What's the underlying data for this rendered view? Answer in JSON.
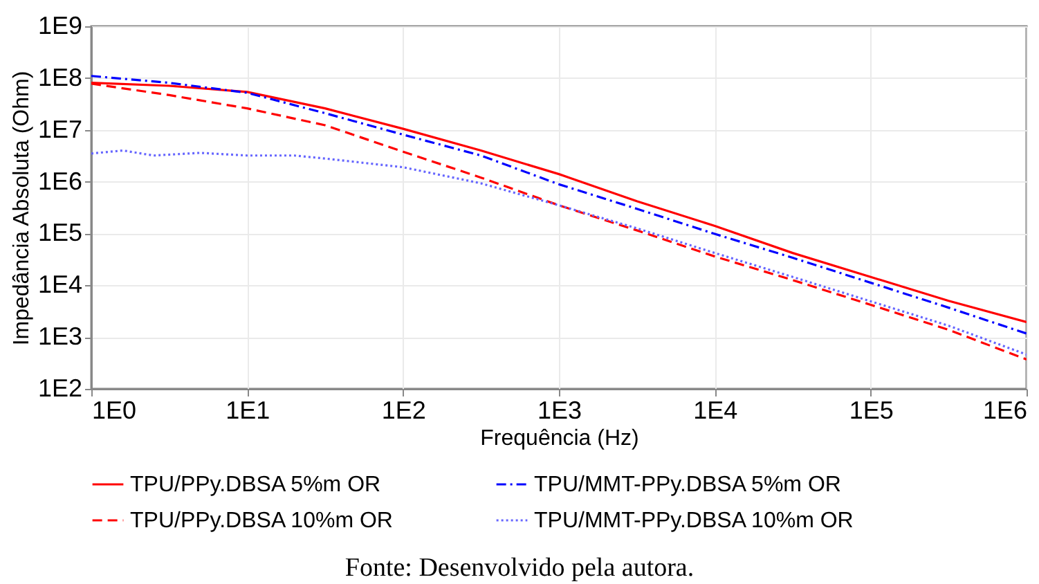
{
  "chart_data": {
    "type": "line",
    "xlabel": "Frequência (Hz)",
    "ylabel": "Impedância Absoluta (Ohm)",
    "log": "xy",
    "grid": true,
    "legend": "bottom",
    "x": [
      1,
      3.16,
      10,
      31.6,
      100,
      316,
      1000,
      3160,
      10000,
      31600,
      100000,
      316000,
      1000000
    ],
    "xlim": [
      1,
      1000000
    ],
    "xticks": [
      {
        "value": 1,
        "label": "1E0"
      },
      {
        "value": 10,
        "label": "1E1"
      },
      {
        "value": 100,
        "label": "1E2"
      },
      {
        "value": 1000,
        "label": "1E3"
      },
      {
        "value": 10000,
        "label": "1E4"
      },
      {
        "value": 100000,
        "label": "1E5"
      },
      {
        "value": 1000000,
        "label": "1E6"
      }
    ],
    "ylim": [
      100,
      1000000000
    ],
    "yticks": [
      {
        "value": 100,
        "label": "1E2"
      },
      {
        "value": 1000,
        "label": "1E3"
      },
      {
        "value": 10000,
        "label": "1E4"
      },
      {
        "value": 100000,
        "label": "1E5"
      },
      {
        "value": 1000000,
        "label": "1E6"
      },
      {
        "value": 10000000,
        "label": "1E7"
      },
      {
        "value": 100000000,
        "label": "1E8"
      },
      {
        "value": 1000000000,
        "label": "1E9"
      }
    ],
    "series": [
      {
        "name": "TPU/PPy.DBSA 5%m OR",
        "color": "#ff0000",
        "line_style": "solid",
        "values": [
          81000000.0,
          71000000.0,
          54000000.0,
          26000000.0,
          10500000.0,
          4000000.0,
          1400000.0,
          420000.0,
          140000.0,
          42000.0,
          14500.0,
          5000.0,
          1950.0
        ]
      },
      {
        "name": "TPU/MMT-PPy.DBSA 5%m OR",
        "color": "#0000ff",
        "line_style": "dashdot",
        "values": [
          110000000.0,
          81000000.0,
          52000000.0,
          21000000.0,
          8100000.0,
          3200000.0,
          890000.0,
          300000.0,
          98000.0,
          34000.0,
          11200.0,
          3700.0,
          1170.0
        ]
      },
      {
        "name": "TPU/PPy.DBSA 10%m OR",
        "color": "#ff0000",
        "line_style": "dashed",
        "values": [
          78000000.0,
          47000000.0,
          26000000.0,
          12300000.0,
          3800000.0,
          1200000.0,
          350000.0,
          115000.0,
          36000.0,
          12600.0,
          4200.0,
          1380.0,
          370.0
        ]
      },
      {
        "name": "TPU/MMT-PPy.DBSA 10%m OR",
        "color": "#6666ff",
        "line_style": "dotted",
        "x": [
          1,
          1.6,
          2.5,
          5,
          10,
          20,
          31.6,
          100,
          316,
          1000,
          3160,
          10000,
          31600,
          100000,
          316000,
          1000000
        ],
        "values": [
          3500000.0,
          4000000.0,
          3200000.0,
          3600000.0,
          3200000.0,
          3200000.0,
          2800000.0,
          1900000.0,
          930000.0,
          350000.0,
          126000.0,
          42000.0,
          14500.0,
          4900.0,
          1660.0,
          460.0
        ]
      }
    ],
    "annotations": [
      "Fonte: Desenvolvido pela autora."
    ]
  }
}
